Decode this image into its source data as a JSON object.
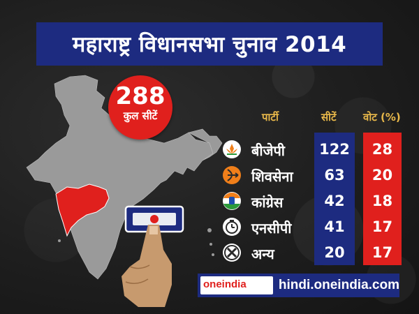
{
  "title": "महाराष्ट्र विधानसभा चुनाव 2014",
  "total": {
    "value": "288",
    "label": "कुल सीटें"
  },
  "table": {
    "headers": {
      "party": "पार्टी",
      "seats": "सीटें",
      "votes": "वोट (%)"
    },
    "rows": [
      {
        "party": "बीजेपी",
        "seats": "122",
        "votes": "28",
        "icon": "lotus-icon"
      },
      {
        "party": "शिवसेना",
        "seats": "63",
        "votes": "20",
        "icon": "bow-arrow-icon"
      },
      {
        "party": "कांग्रेस",
        "seats": "42",
        "votes": "18",
        "icon": "hand-icon"
      },
      {
        "party": "एनसीपी",
        "seats": "41",
        "votes": "17",
        "icon": "clock-icon"
      },
      {
        "party": "अन्य",
        "seats": "20",
        "votes": "17",
        "icon": "cross-icon"
      }
    ]
  },
  "footer": {
    "logo": "oneindia",
    "site": "hindi.oneindia.com"
  },
  "colors": {
    "navy": "#1d2b80",
    "red": "#e0201d",
    "map": "#9a9a9a",
    "highlight": "#e0201d",
    "header": "#e8b84a"
  }
}
